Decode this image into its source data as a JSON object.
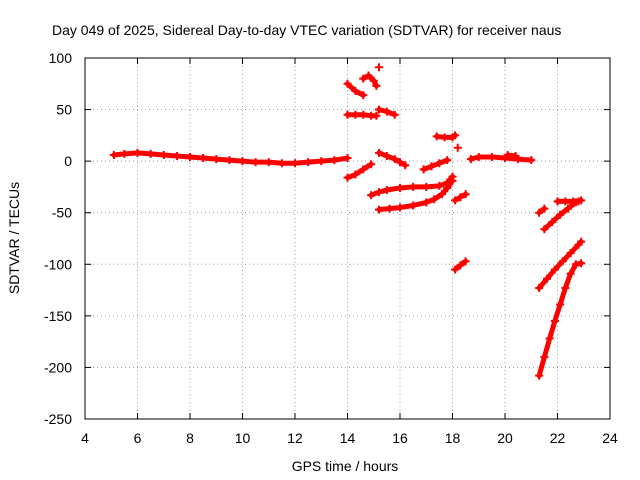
{
  "chart_data": {
    "type": "scatter",
    "title": "Day 049 of 2025, Sidereal Day-to-day VTEC variation (SDTVAR) for receiver naus",
    "xlabel": "GPS time / hours",
    "ylabel": "SDTVAR / TECUs",
    "xlim": [
      4,
      24
    ],
    "ylim": [
      -250,
      100
    ],
    "xticks": [
      4,
      6,
      8,
      10,
      12,
      14,
      16,
      18,
      20,
      22,
      24
    ],
    "yticks": [
      100,
      50,
      0,
      -50,
      -100,
      -150,
      -200,
      -250
    ],
    "grid": true,
    "marker": "+",
    "marker_color": "#ff0000",
    "series": [
      {
        "segments": [
          [
            [
              5.1,
              6
            ],
            [
              5.5,
              7
            ],
            [
              6.0,
              8
            ],
            [
              6.5,
              7
            ],
            [
              7.0,
              6
            ],
            [
              7.5,
              5
            ],
            [
              8.0,
              4
            ],
            [
              8.5,
              3
            ],
            [
              9.0,
              2
            ],
            [
              9.5,
              1
            ],
            [
              10.0,
              0
            ],
            [
              10.5,
              -1
            ],
            [
              11.0,
              -1
            ],
            [
              11.5,
              -2
            ],
            [
              12.0,
              -2
            ],
            [
              12.5,
              -1
            ],
            [
              13.0,
              0
            ],
            [
              13.5,
              1
            ],
            [
              14.0,
              3
            ]
          ],
          [
            [
              14.0,
              -16
            ],
            [
              14.3,
              -13
            ],
            [
              14.6,
              -8
            ],
            [
              14.9,
              -3
            ]
          ],
          [
            [
              14.0,
              75
            ],
            [
              14.3,
              68
            ],
            [
              14.6,
              64
            ]
          ],
          [
            [
              14.0,
              45
            ],
            [
              14.3,
              45
            ],
            [
              14.6,
              45
            ],
            [
              14.9,
              44
            ],
            [
              15.1,
              44
            ]
          ],
          [
            [
              14.6,
              80
            ],
            [
              14.8,
              83
            ],
            [
              15.0,
              78
            ],
            [
              15.1,
              73
            ]
          ],
          [
            [
              15.2,
              91
            ]
          ],
          [
            [
              15.2,
              50
            ],
            [
              15.5,
              48
            ],
            [
              15.8,
              45
            ]
          ],
          [
            [
              15.2,
              8
            ],
            [
              15.5,
              5
            ],
            [
              15.8,
              2
            ],
            [
              16.0,
              -1
            ],
            [
              16.2,
              -4
            ]
          ],
          [
            [
              14.9,
              -33
            ],
            [
              15.2,
              -30
            ],
            [
              15.5,
              -28
            ],
            [
              16.0,
              -26
            ],
            [
              16.5,
              -25
            ],
            [
              17.0,
              -25
            ],
            [
              17.5,
              -24
            ],
            [
              17.8,
              -21
            ],
            [
              18.0,
              -15
            ]
          ],
          [
            [
              15.2,
              -47
            ],
            [
              15.6,
              -46
            ],
            [
              16.0,
              -45
            ],
            [
              16.5,
              -43
            ],
            [
              17.0,
              -40
            ],
            [
              17.3,
              -37
            ],
            [
              17.6,
              -32
            ],
            [
              17.8,
              -26
            ],
            [
              18.0,
              -19
            ]
          ],
          [
            [
              16.9,
              -8
            ],
            [
              17.2,
              -5
            ],
            [
              17.5,
              -2
            ],
            [
              17.8,
              1
            ]
          ],
          [
            [
              17.4,
              24
            ],
            [
              17.7,
              23
            ],
            [
              18.0,
              23
            ],
            [
              18.1,
              25
            ]
          ],
          [
            [
              18.2,
              13
            ]
          ],
          [
            [
              18.1,
              -38
            ],
            [
              18.3,
              -35
            ],
            [
              18.5,
              -32
            ]
          ],
          [
            [
              18.1,
              -105
            ],
            [
              18.3,
              -101
            ],
            [
              18.5,
              -97
            ]
          ],
          [
            [
              18.7,
              2
            ],
            [
              19.0,
              4
            ],
            [
              19.5,
              4
            ],
            [
              20.0,
              3
            ],
            [
              20.5,
              2
            ],
            [
              21.0,
              1
            ]
          ],
          [
            [
              20.1,
              6
            ],
            [
              20.4,
              5
            ]
          ],
          [
            [
              21.3,
              -50
            ],
            [
              21.5,
              -46
            ]
          ],
          [
            [
              21.5,
              -66
            ],
            [
              21.8,
              -59
            ],
            [
              22.1,
              -52
            ],
            [
              22.4,
              -46
            ],
            [
              22.7,
              -40
            ],
            [
              22.9,
              -38
            ]
          ],
          [
            [
              22.0,
              -39
            ],
            [
              22.3,
              -39
            ],
            [
              22.6,
              -39
            ],
            [
              22.8,
              -39
            ]
          ],
          [
            [
              21.3,
              -123
            ],
            [
              21.6,
              -114
            ],
            [
              21.9,
              -105
            ],
            [
              22.2,
              -97
            ],
            [
              22.5,
              -89
            ],
            [
              22.8,
              -81
            ],
            [
              22.9,
              -78
            ]
          ],
          [
            [
              21.3,
              -208
            ],
            [
              21.5,
              -190
            ],
            [
              21.7,
              -172
            ],
            [
              21.9,
              -155
            ],
            [
              22.1,
              -139
            ],
            [
              22.3,
              -123
            ],
            [
              22.5,
              -109
            ],
            [
              22.7,
              -100
            ],
            [
              22.9,
              -99
            ]
          ]
        ]
      }
    ]
  }
}
